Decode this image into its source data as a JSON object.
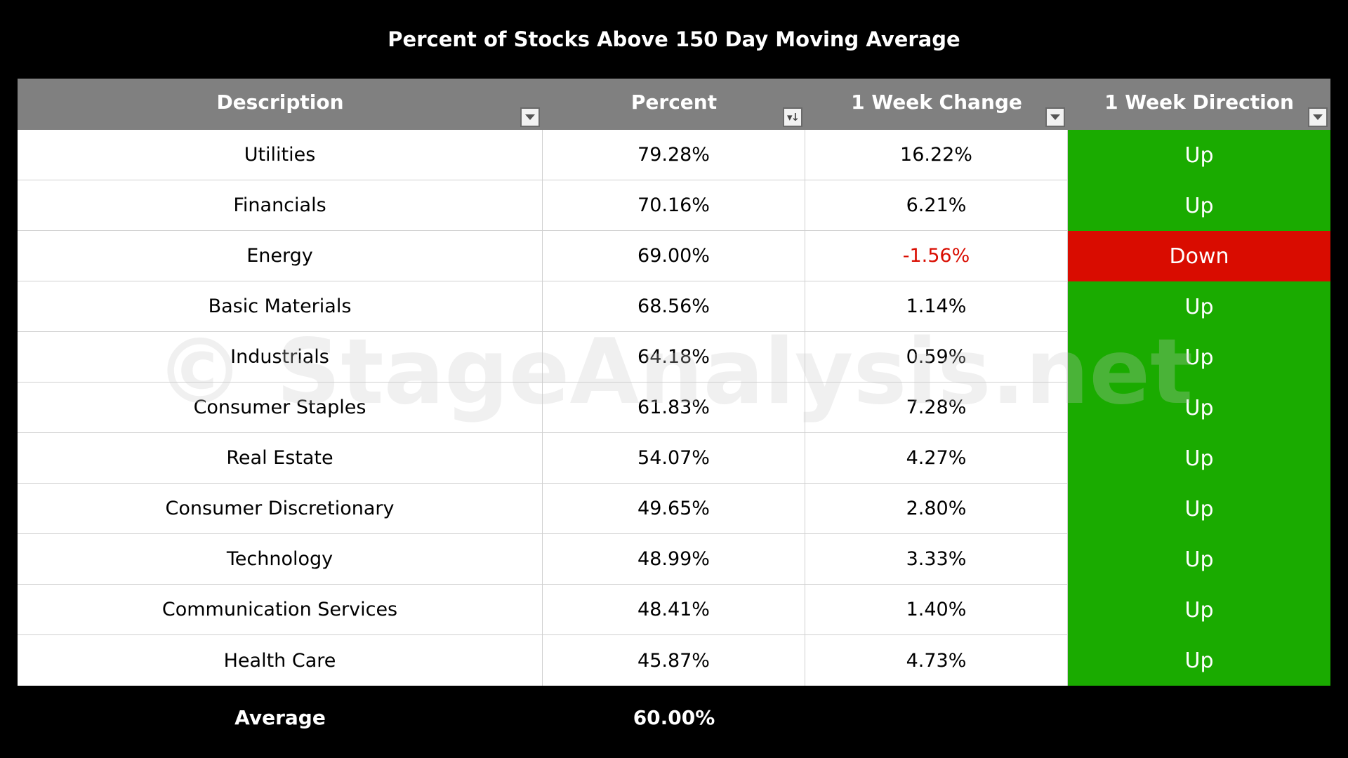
{
  "chart_data": {
    "type": "table",
    "title": "Percent of Stocks Above 150 Day Moving Average",
    "columns": [
      "Description",
      "Percent",
      "1 Week Change",
      "1 Week Direction"
    ],
    "rows": [
      {
        "description": "Utilities",
        "percent": "79.28%",
        "change": "16.22%",
        "direction": "Up"
      },
      {
        "description": "Financials",
        "percent": "70.16%",
        "change": "6.21%",
        "direction": "Up"
      },
      {
        "description": "Energy",
        "percent": "69.00%",
        "change": "-1.56%",
        "direction": "Down"
      },
      {
        "description": "Basic Materials",
        "percent": "68.56%",
        "change": "1.14%",
        "direction": "Up"
      },
      {
        "description": "Industrials",
        "percent": "64.18%",
        "change": "0.59%",
        "direction": "Up"
      },
      {
        "description": "Consumer Staples",
        "percent": "61.83%",
        "change": "7.28%",
        "direction": "Up"
      },
      {
        "description": "Real Estate",
        "percent": "54.07%",
        "change": "4.27%",
        "direction": "Up"
      },
      {
        "description": "Consumer Discretionary",
        "percent": "49.65%",
        "change": "2.80%",
        "direction": "Up"
      },
      {
        "description": "Technology",
        "percent": "48.99%",
        "change": "3.33%",
        "direction": "Up"
      },
      {
        "description": "Communication Services",
        "percent": "48.41%",
        "change": "1.40%",
        "direction": "Up"
      },
      {
        "description": "Health Care",
        "percent": "45.87%",
        "change": "4.73%",
        "direction": "Up"
      }
    ],
    "average": {
      "label": "Average",
      "value": "60.00%"
    },
    "header_filters": [
      "filter-dropdown",
      "sort-descending",
      "filter-dropdown",
      "filter-dropdown"
    ],
    "watermark": "© StageAnalysis.net"
  },
  "colors": {
    "header_bg": "#808080",
    "up_bg": "#1aab00",
    "down_bg": "#d90c00",
    "negative_text": "#d90c00",
    "background": "#000000"
  }
}
